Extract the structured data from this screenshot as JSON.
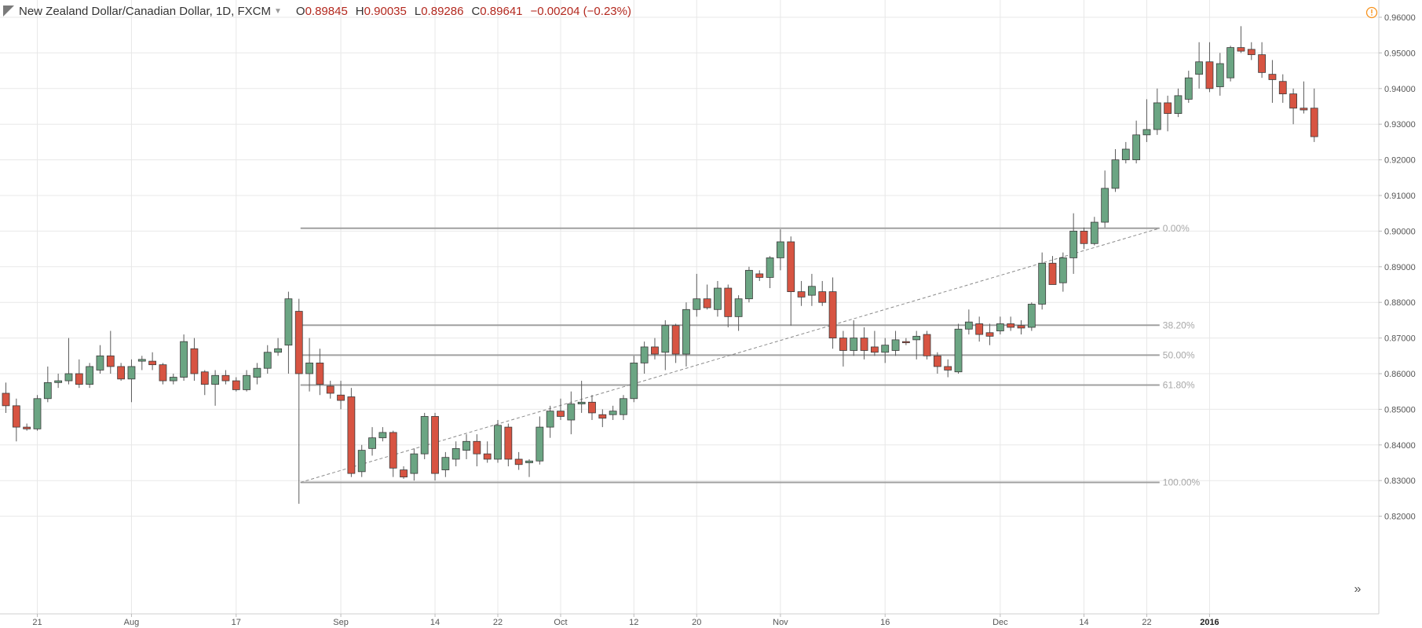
{
  "header": {
    "title": "New Zealand Dollar/Canadian Dollar, 1D, FXCM",
    "ohlc": [
      {
        "key": "O",
        "value": "0.89845"
      },
      {
        "key": "H",
        "value": "0.90035"
      },
      {
        "key": "L",
        "value": "0.89286"
      },
      {
        "key": "C",
        "value": "0.89641"
      },
      {
        "key": "",
        "value": "−0.00204 (−0.23%)"
      }
    ],
    "warning_icon": "alert-circle-icon"
  },
  "scroll_button": {
    "label": "»",
    "icon": "double-chevron-right-icon"
  },
  "colors": {
    "up_body": "#6ba583",
    "down_body": "#d75442",
    "wick": "#5a5a5a",
    "grid": "#e8e8e8",
    "fib": "#a0a0a0",
    "fib_label": "#a8a8a8",
    "axis_text": "#555555",
    "warning": "#f7931e"
  },
  "chart_data": {
    "type": "candlestick",
    "symbol": "NZDCAD",
    "timeframe": "1D",
    "y_axis": {
      "ticks": [
        "0.82000",
        "0.83000",
        "0.84000",
        "0.85000",
        "0.86000",
        "0.87000",
        "0.88000",
        "0.89000",
        "0.90000",
        "0.91000",
        "0.92000",
        "0.93000",
        "0.94000",
        "0.95000",
        "0.96000"
      ],
      "range": [
        0.8165,
        0.963
      ]
    },
    "x_axis": {
      "labels": [
        {
          "text": "21",
          "bar": 3
        },
        {
          "text": "Aug",
          "bar": 12
        },
        {
          "text": "17",
          "bar": 22
        },
        {
          "text": "Sep",
          "bar": 32
        },
        {
          "text": "14",
          "bar": 41
        },
        {
          "text": "22",
          "bar": 47
        },
        {
          "text": "Oct",
          "bar": 53
        },
        {
          "text": "12",
          "bar": 60
        },
        {
          "text": "20",
          "bar": 66
        },
        {
          "text": "Nov",
          "bar": 74
        },
        {
          "text": "16",
          "bar": 84
        },
        {
          "text": "Dec",
          "bar": 95
        },
        {
          "text": "14",
          "bar": 103
        },
        {
          "text": "22",
          "bar": 109
        },
        {
          "text": "2016",
          "bar": 115,
          "bold": true
        }
      ]
    },
    "candles": [
      [
        0.8545,
        0.8575,
        0.849,
        0.851
      ],
      [
        0.851,
        0.853,
        0.841,
        0.845
      ],
      [
        0.845,
        0.846,
        0.844,
        0.8445
      ],
      [
        0.8445,
        0.854,
        0.844,
        0.853
      ],
      [
        0.853,
        0.862,
        0.852,
        0.8575
      ],
      [
        0.8575,
        0.86,
        0.856,
        0.858
      ],
      [
        0.858,
        0.87,
        0.857,
        0.86
      ],
      [
        0.86,
        0.864,
        0.856,
        0.857
      ],
      [
        0.857,
        0.863,
        0.856,
        0.862
      ],
      [
        0.861,
        0.868,
        0.86,
        0.865
      ],
      [
        0.865,
        0.872,
        0.86,
        0.862
      ],
      [
        0.862,
        0.863,
        0.858,
        0.8585
      ],
      [
        0.8585,
        0.864,
        0.852,
        0.862
      ],
      [
        0.8635,
        0.865,
        0.861,
        0.864
      ],
      [
        0.8635,
        0.866,
        0.861,
        0.8625
      ],
      [
        0.8625,
        0.863,
        0.857,
        0.858
      ],
      [
        0.858,
        0.86,
        0.857,
        0.859
      ],
      [
        0.859,
        0.871,
        0.858,
        0.869
      ],
      [
        0.867,
        0.87,
        0.858,
        0.86
      ],
      [
        0.8605,
        0.861,
        0.854,
        0.857
      ],
      [
        0.857,
        0.861,
        0.851,
        0.8595
      ],
      [
        0.8595,
        0.861,
        0.857,
        0.858
      ],
      [
        0.858,
        0.859,
        0.855,
        0.8555
      ],
      [
        0.8555,
        0.861,
        0.855,
        0.8595
      ],
      [
        0.859,
        0.863,
        0.857,
        0.8615
      ],
      [
        0.8615,
        0.868,
        0.86,
        0.866
      ],
      [
        0.866,
        0.87,
        0.865,
        0.867
      ],
      [
        0.868,
        0.883,
        0.86,
        0.881
      ],
      [
        0.8775,
        0.881,
        0.8235,
        0.86
      ],
      [
        0.86,
        0.87,
        0.855,
        0.863
      ],
      [
        0.863,
        0.867,
        0.854,
        0.857
      ],
      [
        0.8565,
        0.858,
        0.853,
        0.8545
      ],
      [
        0.854,
        0.858,
        0.85,
        0.8525
      ],
      [
        0.8535,
        0.856,
        0.831,
        0.832
      ],
      [
        0.8325,
        0.84,
        0.831,
        0.8385
      ],
      [
        0.839,
        0.845,
        0.837,
        0.842
      ],
      [
        0.842,
        0.845,
        0.841,
        0.8435
      ],
      [
        0.8435,
        0.844,
        0.831,
        0.8335
      ],
      [
        0.833,
        0.834,
        0.8305,
        0.831
      ],
      [
        0.832,
        0.839,
        0.83,
        0.8375
      ],
      [
        0.8375,
        0.849,
        0.836,
        0.848
      ],
      [
        0.848,
        0.849,
        0.83,
        0.832
      ],
      [
        0.833,
        0.838,
        0.831,
        0.8365
      ],
      [
        0.836,
        0.841,
        0.834,
        0.839
      ],
      [
        0.8385,
        0.843,
        0.836,
        0.841
      ],
      [
        0.841,
        0.843,
        0.834,
        0.8375
      ],
      [
        0.8375,
        0.841,
        0.835,
        0.836
      ],
      [
        0.836,
        0.847,
        0.835,
        0.8455
      ],
      [
        0.845,
        0.846,
        0.834,
        0.836
      ],
      [
        0.836,
        0.838,
        0.833,
        0.8345
      ],
      [
        0.835,
        0.836,
        0.831,
        0.8355
      ],
      [
        0.8355,
        0.848,
        0.8345,
        0.845
      ],
      [
        0.845,
        0.851,
        0.842,
        0.8495
      ],
      [
        0.8495,
        0.853,
        0.847,
        0.848
      ],
      [
        0.847,
        0.855,
        0.843,
        0.8515
      ],
      [
        0.8515,
        0.858,
        0.849,
        0.852
      ],
      [
        0.852,
        0.854,
        0.847,
        0.849
      ],
      [
        0.8485,
        0.85,
        0.845,
        0.8475
      ],
      [
        0.8485,
        0.851,
        0.847,
        0.8495
      ],
      [
        0.8485,
        0.854,
        0.847,
        0.853
      ],
      [
        0.853,
        0.865,
        0.852,
        0.863
      ],
      [
        0.863,
        0.869,
        0.86,
        0.8675
      ],
      [
        0.8675,
        0.87,
        0.864,
        0.8655
      ],
      [
        0.866,
        0.875,
        0.861,
        0.8735
      ],
      [
        0.8735,
        0.874,
        0.863,
        0.8655
      ],
      [
        0.8655,
        0.88,
        0.862,
        0.878
      ],
      [
        0.878,
        0.888,
        0.876,
        0.881
      ],
      [
        0.881,
        0.885,
        0.878,
        0.8785
      ],
      [
        0.878,
        0.886,
        0.876,
        0.884
      ],
      [
        0.884,
        0.885,
        0.873,
        0.876
      ],
      [
        0.876,
        0.882,
        0.872,
        0.881
      ],
      [
        0.881,
        0.89,
        0.88,
        0.889
      ],
      [
        0.888,
        0.889,
        0.886,
        0.887
      ],
      [
        0.887,
        0.893,
        0.884,
        0.8925
      ],
      [
        0.8925,
        0.9005,
        0.889,
        0.897
      ],
      [
        0.897,
        0.8985,
        0.8735,
        0.883
      ],
      [
        0.883,
        0.886,
        0.879,
        0.8815
      ],
      [
        0.882,
        0.888,
        0.879,
        0.8845
      ],
      [
        0.883,
        0.886,
        0.879,
        0.88
      ],
      [
        0.883,
        0.887,
        0.867,
        0.87
      ],
      [
        0.87,
        0.872,
        0.862,
        0.8665
      ],
      [
        0.8665,
        0.875,
        0.865,
        0.87
      ],
      [
        0.87,
        0.873,
        0.864,
        0.8665
      ],
      [
        0.8675,
        0.872,
        0.865,
        0.866
      ],
      [
        0.866,
        0.87,
        0.863,
        0.868
      ],
      [
        0.8665,
        0.872,
        0.865,
        0.8695
      ],
      [
        0.869,
        0.87,
        0.868,
        0.8688
      ],
      [
        0.8695,
        0.872,
        0.864,
        0.8705
      ],
      [
        0.871,
        0.872,
        0.864,
        0.865
      ],
      [
        0.865,
        0.866,
        0.86,
        0.862
      ],
      [
        0.862,
        0.864,
        0.859,
        0.861
      ],
      [
        0.8605,
        0.874,
        0.86,
        0.8725
      ],
      [
        0.8725,
        0.878,
        0.871,
        0.8745
      ],
      [
        0.874,
        0.876,
        0.869,
        0.871
      ],
      [
        0.8715,
        0.874,
        0.868,
        0.8705
      ],
      [
        0.872,
        0.876,
        0.871,
        0.874
      ],
      [
        0.874,
        0.876,
        0.872,
        0.873
      ],
      [
        0.8735,
        0.875,
        0.871,
        0.8728
      ],
      [
        0.873,
        0.88,
        0.872,
        0.8795
      ],
      [
        0.8795,
        0.894,
        0.878,
        0.891
      ],
      [
        0.891,
        0.893,
        0.885,
        0.885
      ],
      [
        0.8855,
        0.894,
        0.883,
        0.8925
      ],
      [
        0.8925,
        0.905,
        0.888,
        0.9
      ],
      [
        0.9,
        0.901,
        0.895,
        0.8965
      ],
      [
        0.8965,
        0.904,
        0.896,
        0.9025
      ],
      [
        0.9025,
        0.917,
        0.901,
        0.912
      ],
      [
        0.912,
        0.923,
        0.911,
        0.92
      ],
      [
        0.92,
        0.925,
        0.919,
        0.923
      ],
      [
        0.92,
        0.931,
        0.919,
        0.927
      ],
      [
        0.927,
        0.937,
        0.925,
        0.9285
      ],
      [
        0.9285,
        0.94,
        0.927,
        0.936
      ],
      [
        0.936,
        0.938,
        0.928,
        0.933
      ],
      [
        0.933,
        0.94,
        0.932,
        0.938
      ],
      [
        0.937,
        0.945,
        0.936,
        0.943
      ],
      [
        0.944,
        0.953,
        0.94,
        0.9475
      ],
      [
        0.9475,
        0.953,
        0.939,
        0.94
      ],
      [
        0.9405,
        0.95,
        0.938,
        0.947
      ],
      [
        0.943,
        0.952,
        0.942,
        0.9515
      ],
      [
        0.9515,
        0.9575,
        0.95,
        0.9505
      ],
      [
        0.951,
        0.953,
        0.948,
        0.9495
      ],
      [
        0.9495,
        0.953,
        0.943,
        0.9445
      ],
      [
        0.944,
        0.948,
        0.936,
        0.9425
      ],
      [
        0.942,
        0.944,
        0.936,
        0.9385
      ],
      [
        0.9385,
        0.94,
        0.93,
        0.9345
      ],
      [
        0.9345,
        0.942,
        0.933,
        0.934
      ],
      [
        0.9345,
        0.94,
        0.925,
        0.9265
      ]
    ],
    "fibonacci": {
      "levels": [
        {
          "label": "0.00%",
          "price": 0.9008
        },
        {
          "label": "38.20%",
          "price": 0.8736
        },
        {
          "label": "50.00%",
          "price": 0.8652
        },
        {
          "label": "61.80%",
          "price": 0.8568
        },
        {
          "label": "100.00%",
          "price": 0.8295
        }
      ],
      "start_bar": 28,
      "end_bar": 110,
      "trend_line": {
        "from": {
          "bar": 28,
          "price": 0.8295
        },
        "to": {
          "bar": 110,
          "price": 0.9008
        }
      }
    }
  }
}
